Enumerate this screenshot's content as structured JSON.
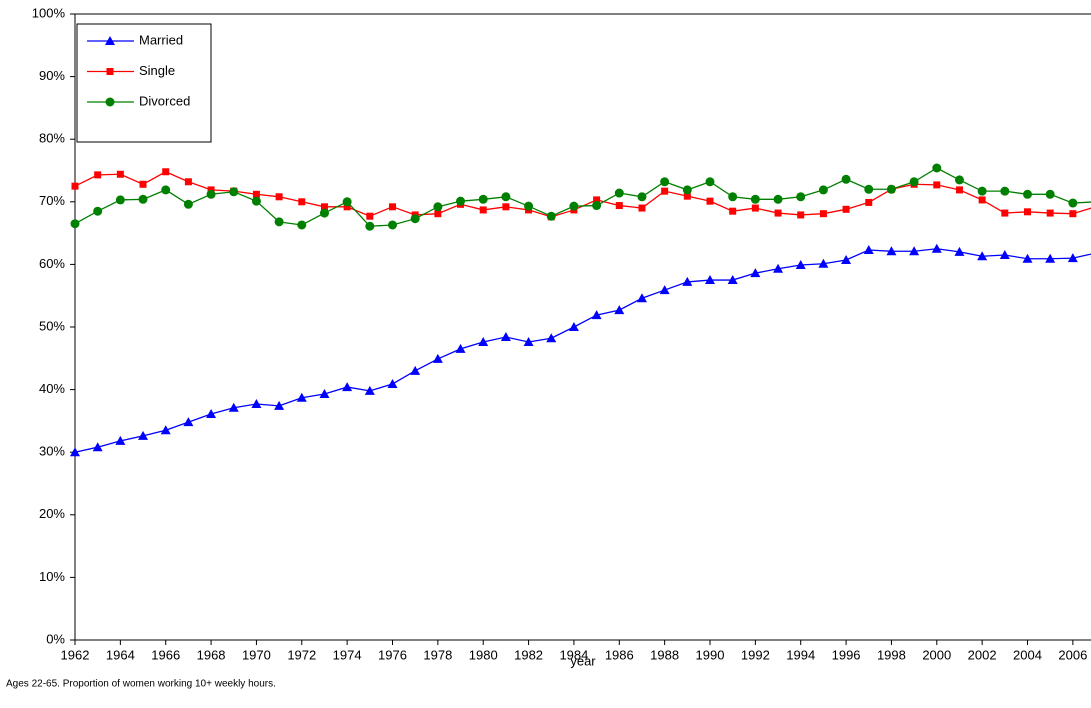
{
  "chart_data": {
    "type": "line",
    "xlabel": "year",
    "note": "Ages 22-65. Proportion of women working 10+ weekly hours.",
    "x": [
      1962,
      1963,
      1964,
      1965,
      1966,
      1967,
      1968,
      1969,
      1970,
      1971,
      1972,
      1973,
      1974,
      1975,
      1976,
      1977,
      1978,
      1979,
      1980,
      1981,
      1982,
      1983,
      1984,
      1985,
      1986,
      1987,
      1988,
      1989,
      1990,
      1991,
      1992,
      1993,
      1994,
      1995,
      1996,
      1997,
      1998,
      1999,
      2000,
      2001,
      2002,
      2003,
      2004,
      2005,
      2006,
      2007
    ],
    "xlim": [
      1962,
      2006.8
    ],
    "xticks": [
      1962,
      1964,
      1966,
      1968,
      1970,
      1972,
      1974,
      1976,
      1978,
      1980,
      1982,
      1984,
      1986,
      1988,
      1990,
      1992,
      1994,
      1996,
      1998,
      2000,
      2002,
      2004,
      2006
    ],
    "ylim": [
      0,
      100
    ],
    "yticks": [
      {
        "value": 0,
        "label": "0%"
      },
      {
        "value": 10,
        "label": "10%"
      },
      {
        "value": 20,
        "label": "20%"
      },
      {
        "value": 30,
        "label": "30%"
      },
      {
        "value": 40,
        "label": "40%"
      },
      {
        "value": 50,
        "label": "50%"
      },
      {
        "value": 60,
        "label": "60%"
      },
      {
        "value": 70,
        "label": "70%"
      },
      {
        "value": 80,
        "label": "80%"
      },
      {
        "value": 90,
        "label": "90%"
      },
      {
        "value": 100,
        "label": "100%"
      }
    ],
    "legend": "upper left",
    "series": [
      {
        "name": "Married",
        "color": "#0000ff",
        "marker": "triangle",
        "values": [
          30.0,
          30.8,
          31.8,
          32.6,
          33.5,
          34.8,
          36.1,
          37.1,
          37.7,
          37.4,
          38.7,
          39.3,
          40.4,
          39.8,
          40.9,
          43.0,
          44.9,
          46.5,
          47.6,
          48.4,
          47.6,
          48.2,
          50.0,
          51.9,
          52.7,
          54.6,
          55.9,
          57.2,
          57.5,
          57.5,
          58.6,
          59.3,
          59.9,
          60.1,
          60.7,
          62.3,
          62.1,
          62.1,
          62.5,
          62.0,
          61.3,
          61.5,
          60.9,
          60.9,
          61.0,
          61.8
        ]
      },
      {
        "name": "Single",
        "color": "#ff0000",
        "marker": "square",
        "values": [
          72.5,
          74.3,
          74.4,
          72.8,
          74.8,
          73.2,
          71.9,
          71.7,
          71.2,
          70.8,
          70.0,
          69.2,
          69.2,
          67.7,
          69.2,
          67.9,
          68.1,
          69.6,
          68.7,
          69.2,
          68.7,
          67.6,
          68.7,
          70.3,
          69.4,
          69.0,
          71.7,
          70.9,
          70.1,
          68.5,
          69.0,
          68.2,
          67.9,
          68.1,
          68.8,
          69.9,
          72.0,
          72.8,
          72.7,
          71.9,
          70.3,
          68.2,
          68.4,
          68.2,
          68.1,
          69.2
        ]
      },
      {
        "name": "Divorced",
        "color": "#008000",
        "marker": "circle",
        "values": [
          66.5,
          68.5,
          70.3,
          70.4,
          71.9,
          69.6,
          71.2,
          71.6,
          70.1,
          66.8,
          66.3,
          68.2,
          70.0,
          66.1,
          66.3,
          67.3,
          69.2,
          70.1,
          70.4,
          70.8,
          69.3,
          67.7,
          69.3,
          69.4,
          71.4,
          70.8,
          73.2,
          71.9,
          73.2,
          70.8,
          70.4,
          70.4,
          70.8,
          71.9,
          73.6,
          72.0,
          72.0,
          73.2,
          75.4,
          73.5,
          71.7,
          71.7,
          71.2,
          71.2,
          69.8,
          70.0
        ]
      }
    ]
  }
}
